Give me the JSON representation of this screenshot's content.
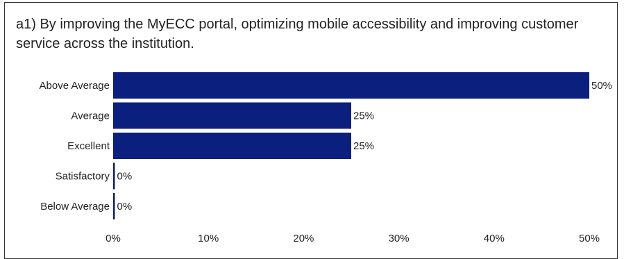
{
  "question": {
    "text": "a1) By improving the MyECC portal, optimizing mobile accessibility and improving customer service across the institution."
  },
  "chart_data": {
    "type": "bar",
    "orientation": "horizontal",
    "title": "a1) By improving the MyECC portal, optimizing mobile accessibility and improving customer service across the institution.",
    "categories": [
      "Above Average",
      "Average",
      "Excellent",
      "Satisfactory",
      "Below Average"
    ],
    "values": [
      50,
      25,
      25,
      0,
      0
    ],
    "value_labels": [
      "50%",
      "25%",
      "25%",
      "0%",
      "0%"
    ],
    "unit": "%",
    "xlim": [
      0,
      50
    ],
    "xticks": [
      0,
      10,
      20,
      30,
      40,
      50
    ],
    "xtick_labels": [
      "0%",
      "10%",
      "20%",
      "30%",
      "40%",
      "50%"
    ],
    "xlabel": "",
    "ylabel": "",
    "grid": false,
    "legend": "none",
    "bar_color": "#0b1f7e"
  }
}
